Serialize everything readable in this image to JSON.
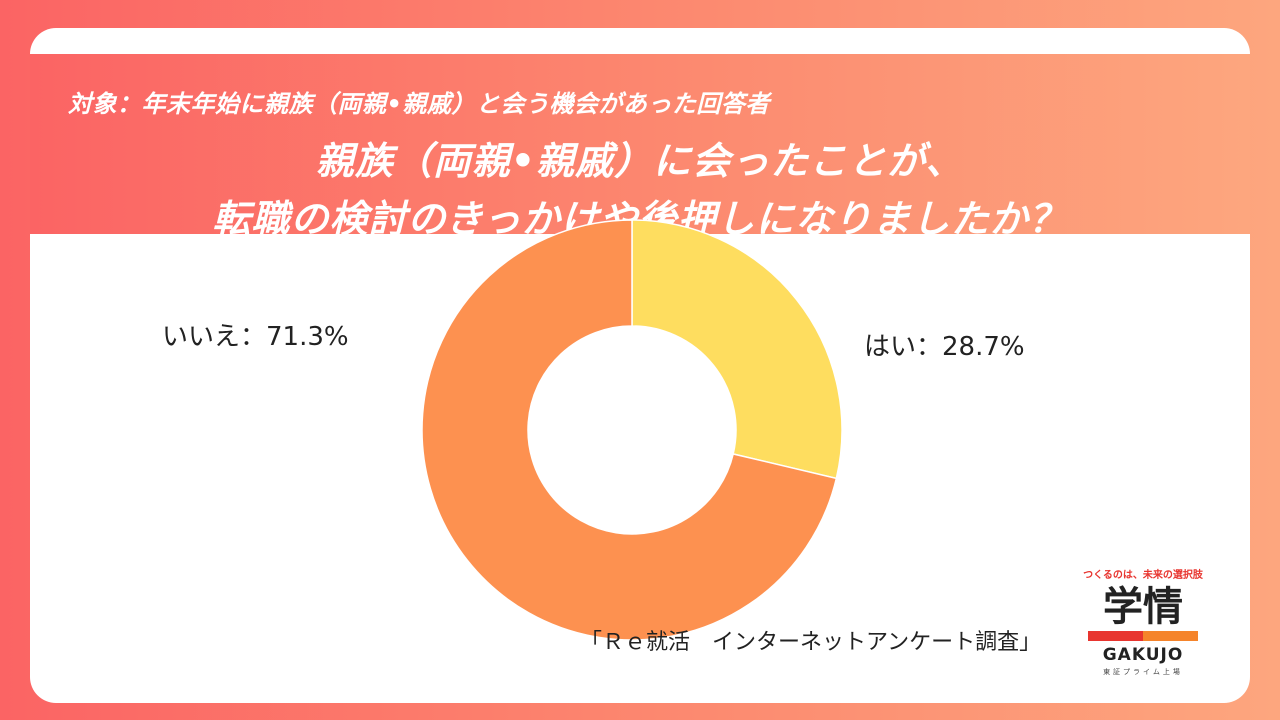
{
  "header": {
    "target": "対象：年末年始に親族（両親•親戚）と会う機会があった回答者",
    "title_line1": "親族（両親•親戚）に会ったことが、",
    "title_line2": "転職の検討のきっかけや後押しになりましたか？"
  },
  "chart_data": {
    "type": "pie",
    "donut": true,
    "categories": [
      "はい",
      "いいえ"
    ],
    "values": [
      28.7,
      71.3
    ],
    "colors": [
      "#fedd5f",
      "#fd9150"
    ],
    "labels": [
      "はい：28.7%",
      "いいえ：71.3%"
    ]
  },
  "footer": {
    "source": "「Ｒｅ就活　インターネットアンケート調査」"
  },
  "brand": {
    "tagline": "つくるのは、未来の選択肢",
    "logo_main": "学情",
    "logo_sub": "GAKUJO",
    "exchange": "東証プライム上場"
  }
}
